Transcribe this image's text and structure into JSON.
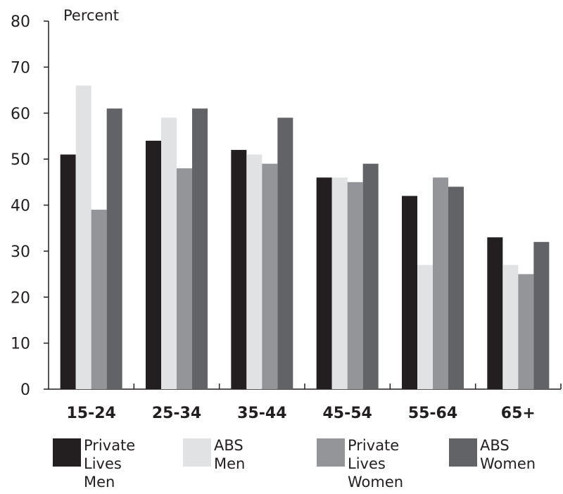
{
  "chart_data": {
    "type": "bar",
    "ylabel": "Percent",
    "ylim": [
      0,
      80
    ],
    "yticks": [
      "0",
      "10",
      "20",
      "30",
      "40",
      "50",
      "60",
      "70",
      "80"
    ],
    "categories": [
      "15-24",
      "25-34",
      "35-44",
      "45-54",
      "55-64",
      "65+"
    ],
    "series": [
      {
        "name": "Private Lives Men",
        "label_lines": [
          "Private",
          "Lives",
          "Men"
        ],
        "color": "#231f20",
        "values": [
          51,
          54,
          52,
          46,
          42,
          33
        ]
      },
      {
        "name": "ABS Men",
        "label_lines": [
          "ABS",
          "Men"
        ],
        "color": "#e1e2e3",
        "values": [
          66,
          59,
          51,
          46,
          27,
          27
        ]
      },
      {
        "name": "Private Lives Women",
        "label_lines": [
          "Private",
          "Lives",
          "Women"
        ],
        "color": "#939598",
        "values": [
          39,
          48,
          49,
          45,
          46,
          25
        ]
      },
      {
        "name": "ABS Women",
        "label_lines": [
          "ABS",
          "Women"
        ],
        "color": "#626366",
        "values": [
          61,
          61,
          59,
          49,
          44,
          32
        ]
      }
    ],
    "grid": false,
    "legend_position": "bottom"
  }
}
